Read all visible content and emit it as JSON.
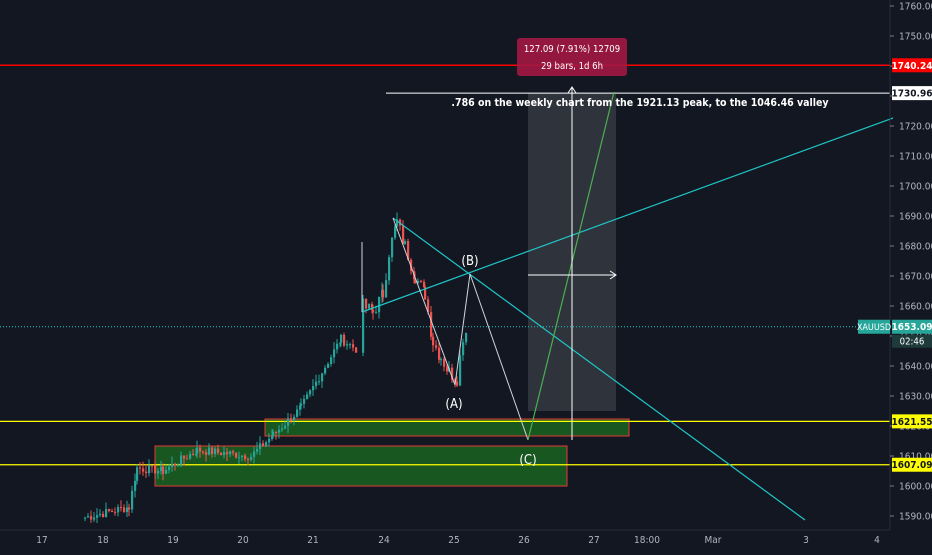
{
  "symbol": "XAUUSD",
  "chart_data": {
    "type": "candlestick",
    "instrument": "XAUUSD",
    "ylim": [
      1585,
      1762
    ],
    "y_ticks": [
      1590,
      1600,
      1610,
      1620,
      1630,
      1640,
      1650,
      1660,
      1670,
      1680,
      1690,
      1700,
      1710,
      1720,
      1730,
      1740,
      1750,
      1760
    ],
    "x_ticks": [
      "17",
      "18",
      "19",
      "20",
      "21",
      "24",
      "25",
      "26",
      "27",
      "18:00",
      "Mar",
      "3",
      "4"
    ],
    "price_tags": {
      "red_level": "1740.24",
      "target_level": "1730.96",
      "current": "1653.09",
      "countdown": "02:46",
      "yellow_1": "1621.55",
      "yellow_2": "1607.09"
    },
    "levels": {
      "red": 1740.24,
      "target": 1730.96,
      "current": 1653.09,
      "yellow_1": 1621.55,
      "yellow_2": 1607.09
    },
    "annotation": ".786 on the weekly chart from the 1921.13 peak, to the 1046.46 valley",
    "measure": {
      "line1": "127.09 (7.91%) 12709",
      "line2": "29 bars, 1d 6h"
    },
    "wave_labels": [
      "(A)",
      "(B)",
      "(C)"
    ],
    "colors": {
      "background": "#131722",
      "up": "#26a69a",
      "down": "#ef5350",
      "red_line": "#ff0000",
      "yellow_line": "#ffff00",
      "teal": "#1fc6c6",
      "green_zone": "#1b5e20",
      "measure_box": "#a31744"
    }
  }
}
